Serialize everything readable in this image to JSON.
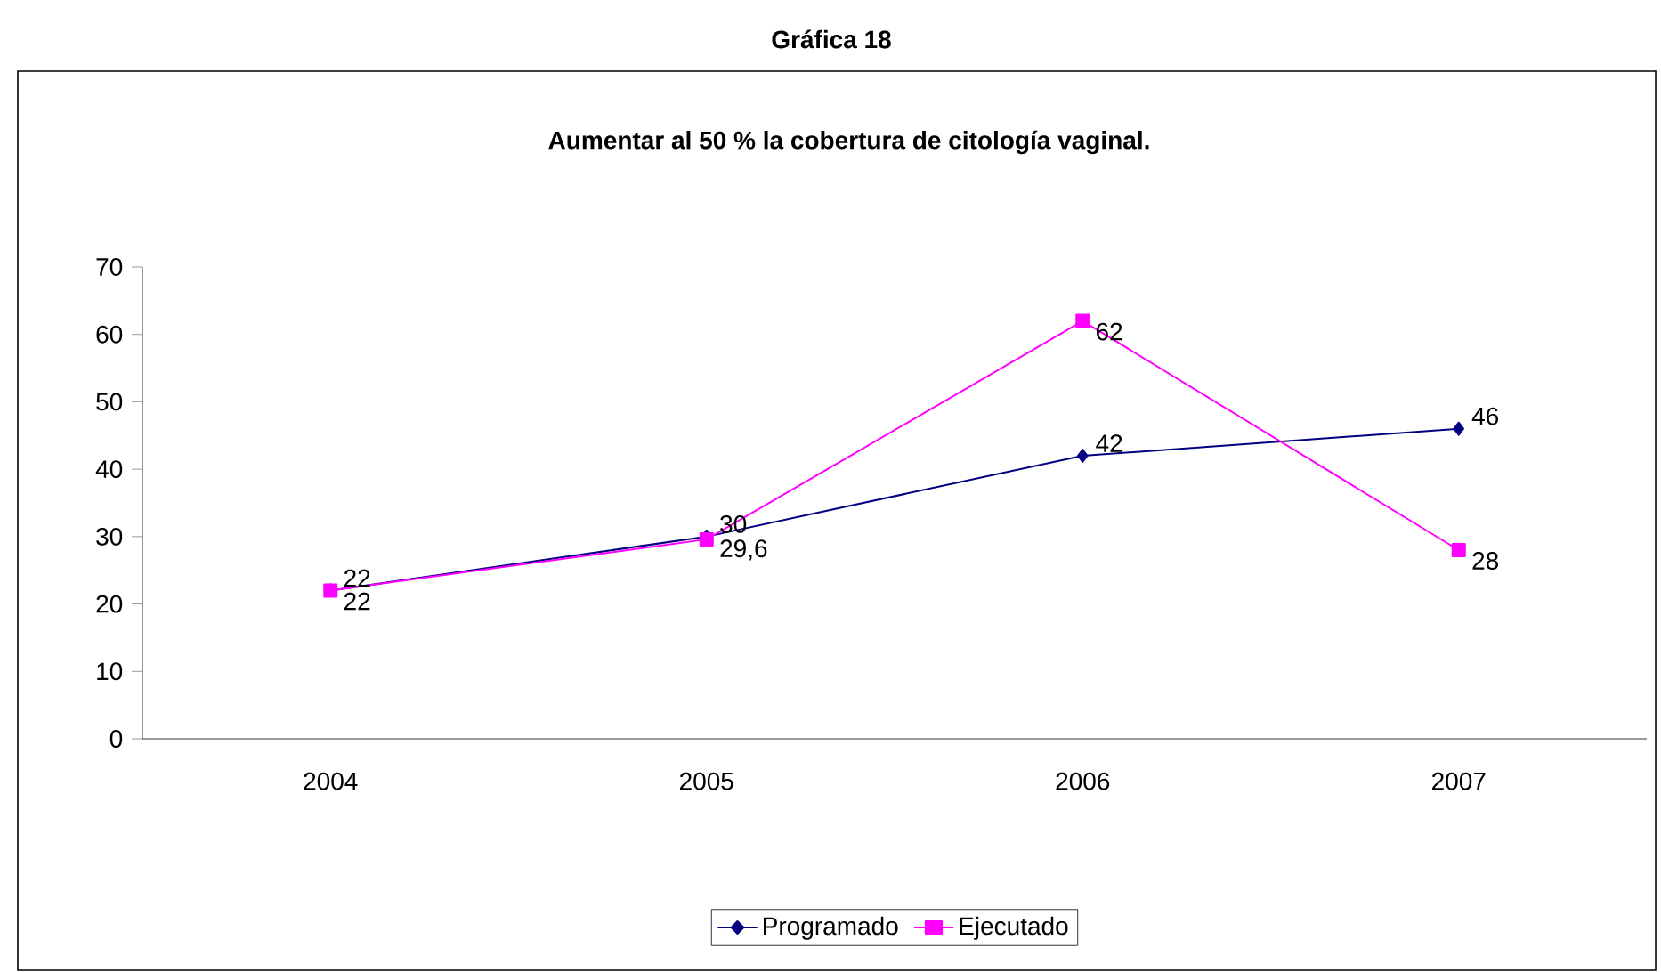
{
  "chart_data": {
    "type": "line",
    "title": "Gráfica 18",
    "subtitle": "Aumentar al 50 % la cobertura de citología vaginal.",
    "categories": [
      "2004",
      "2005",
      "2006",
      "2007"
    ],
    "series": [
      {
        "name": "Programado",
        "color": "#000080",
        "marker": "diamond",
        "values": [
          22,
          30,
          42,
          46
        ],
        "value_labels": [
          "22",
          "30",
          "42",
          "46"
        ]
      },
      {
        "name": "Ejecutado",
        "color": "#ff00ff",
        "marker": "square",
        "values": [
          22,
          29.6,
          62,
          28
        ],
        "value_labels": [
          "22",
          "29,6",
          "62",
          "28"
        ]
      }
    ],
    "ylim": [
      0,
      70
    ],
    "yticks": [
      0,
      10,
      20,
      30,
      40,
      50,
      60,
      70
    ],
    "grid": false,
    "legend": "bottom"
  }
}
